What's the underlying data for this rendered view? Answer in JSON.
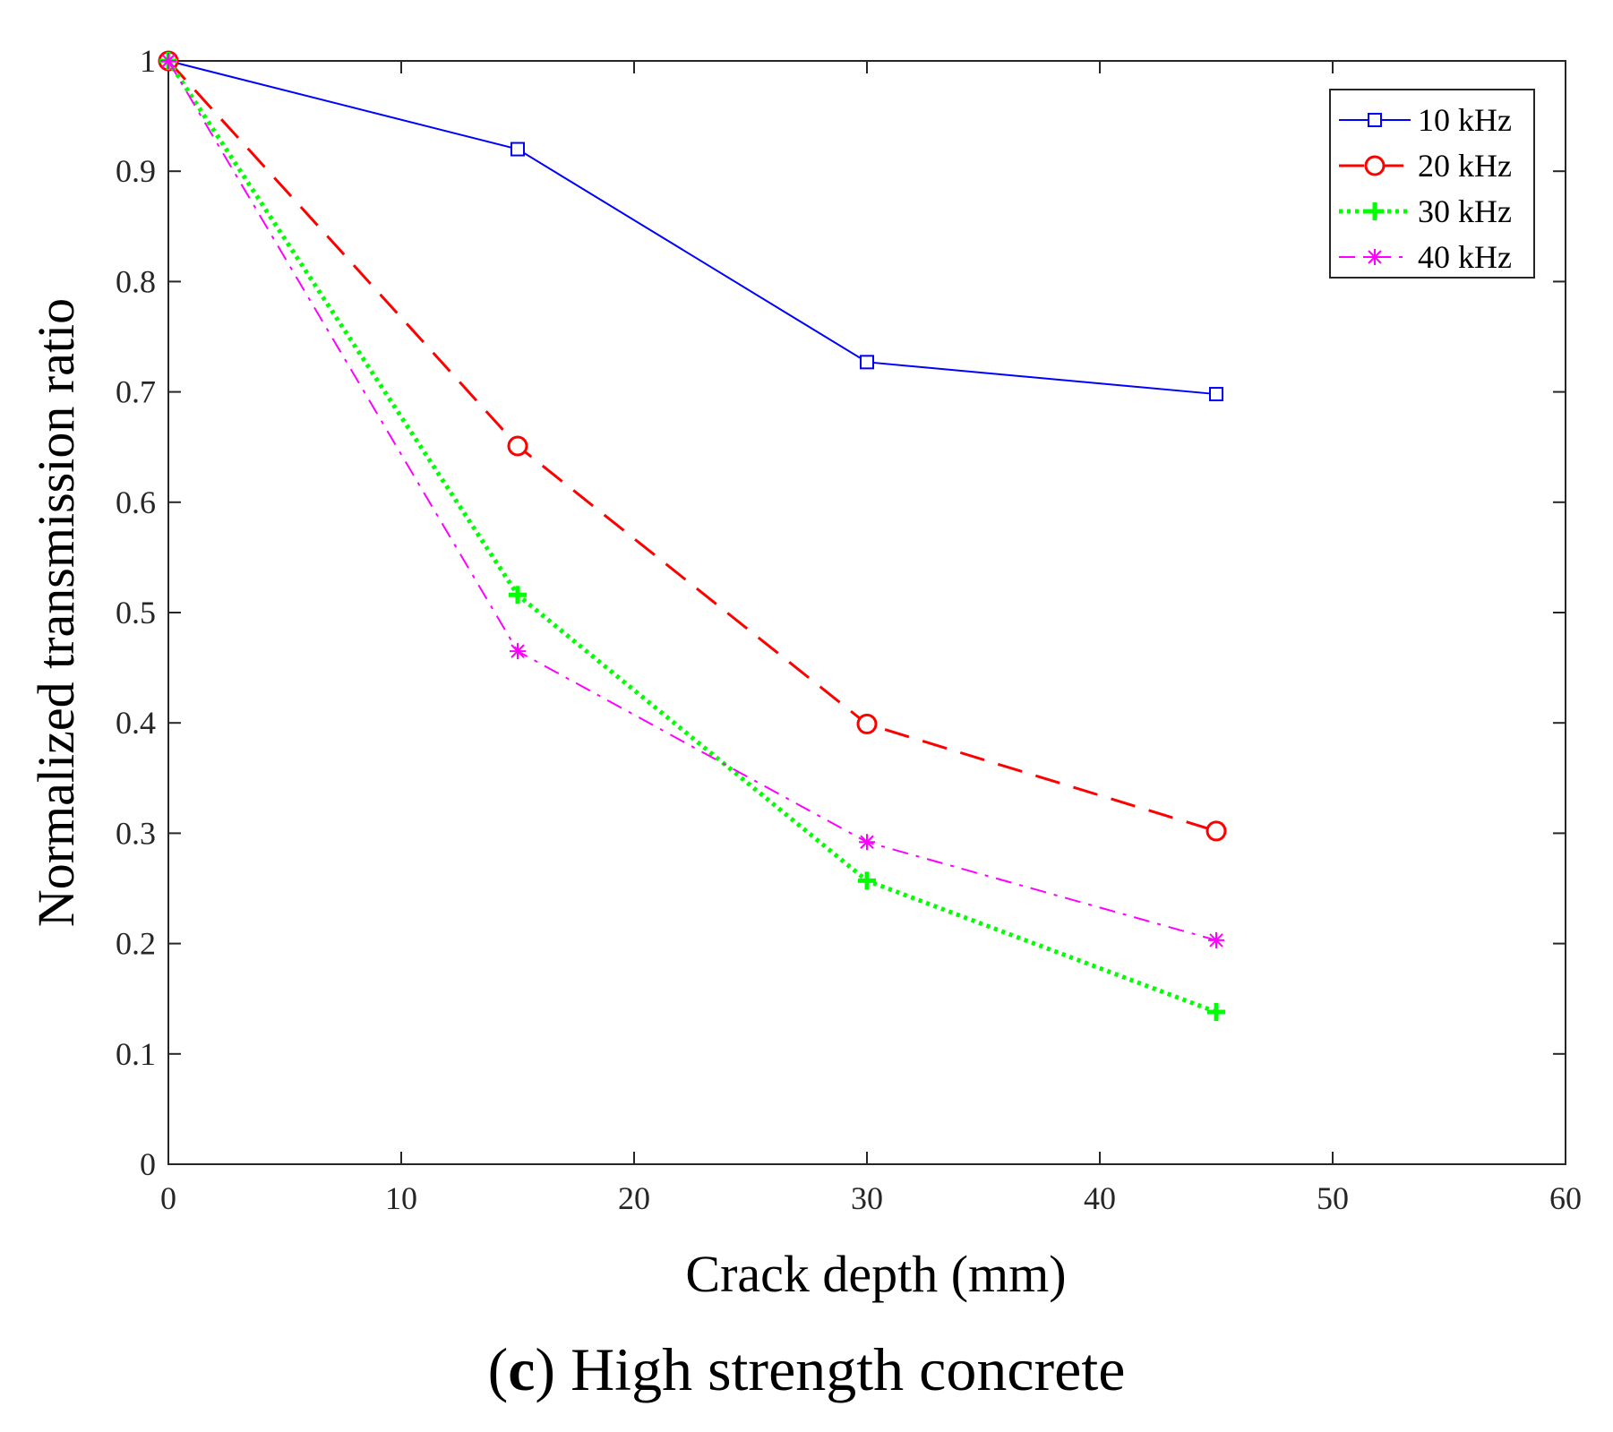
{
  "chart_data": {
    "type": "line",
    "title": "",
    "xlabel": "Crack depth (mm)",
    "ylabel": "Normalized transmission ratio",
    "xlim": [
      0,
      60
    ],
    "ylim": [
      0,
      1
    ],
    "xticks": [
      0,
      10,
      20,
      30,
      40,
      50,
      60
    ],
    "yticks": [
      0,
      0.1,
      0.2,
      0.3,
      0.4,
      0.5,
      0.6,
      0.7,
      0.8,
      0.9,
      1
    ],
    "xtick_labels": [
      "0",
      "10",
      "20",
      "30",
      "40",
      "50",
      "60"
    ],
    "ytick_labels": [
      "0",
      "0.1",
      "0.2",
      "0.3",
      "0.4",
      "0.5",
      "0.6",
      "0.7",
      "0.8",
      "0.9",
      "1"
    ],
    "grid": false,
    "legend_position": "top-right",
    "x": [
      0,
      15,
      30,
      45
    ],
    "series": [
      {
        "name": "10 kHz",
        "values": [
          1.0,
          0.92,
          0.727,
          0.698
        ],
        "color": "#0000ff",
        "line_style": "solid",
        "marker": "square"
      },
      {
        "name": "20 kHz",
        "values": [
          1.0,
          0.651,
          0.399,
          0.302
        ],
        "color": "#ff0000",
        "line_style": "dashed",
        "marker": "circle"
      },
      {
        "name": "30 kHz",
        "values": [
          1.0,
          0.516,
          0.257,
          0.138
        ],
        "color": "#00ff00",
        "line_style": "dotted",
        "marker": "plus"
      },
      {
        "name": "40 kHz",
        "values": [
          1.0,
          0.465,
          0.292,
          0.203
        ],
        "color": "#ff00ff",
        "line_style": "dashdot",
        "marker": "asterisk"
      }
    ]
  },
  "caption": {
    "letter": "c",
    "open_paren": "(",
    "close_paren": ")",
    "text": " High strength concrete"
  }
}
